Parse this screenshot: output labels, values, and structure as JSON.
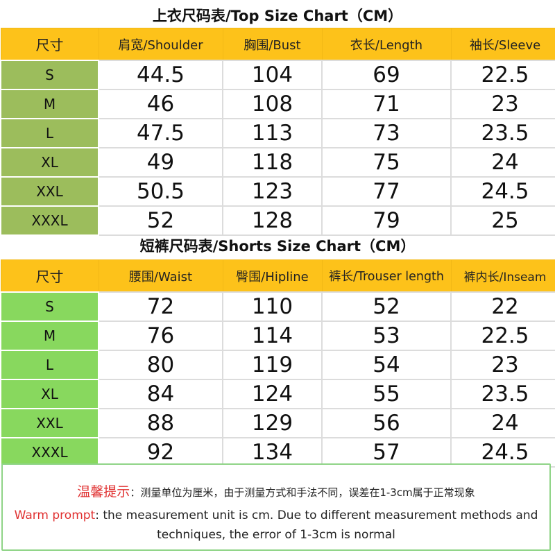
{
  "top_chart": {
    "title": "上衣尺码表/Top Size Chart（CM）",
    "headers": [
      "尺寸",
      "肩宽/Shoulder",
      "胸围/Bust",
      "衣长/Length",
      "袖长/Sleeve"
    ],
    "rows": [
      [
        "S",
        "44.5",
        "104",
        "69",
        "22.5"
      ],
      [
        "M",
        "46",
        "108",
        "71",
        "23"
      ],
      [
        "L",
        "47.5",
        "113",
        "73",
        "23.5"
      ],
      [
        "XL",
        "49",
        "118",
        "75",
        "24"
      ],
      [
        "XXL",
        "50.5",
        "123",
        "77",
        "24.5"
      ],
      [
        "XXXL",
        "52",
        "128",
        "79",
        "25"
      ]
    ]
  },
  "shorts_chart": {
    "title": "短裤尺码表/Shorts Size Chart（CM）",
    "headers": [
      "尺寸",
      "腰围/Waist",
      "臀围/Hipline",
      "裤长/Trouser length",
      "裤内长/Inseam"
    ],
    "rows": [
      [
        "S",
        "72",
        "110",
        "52",
        "22"
      ],
      [
        "M",
        "76",
        "114",
        "53",
        "22.5"
      ],
      [
        "L",
        "80",
        "119",
        "54",
        "23"
      ],
      [
        "XL",
        "84",
        "124",
        "55",
        "23.5"
      ],
      [
        "XXL",
        "88",
        "129",
        "56",
        "24"
      ],
      [
        "XXXL",
        "92",
        "134",
        "57",
        "24.5"
      ]
    ]
  },
  "note": {
    "label_cn": "温馨提示",
    "text_cn": "：测量单位为厘米，由于测量方式和手法不同，误差在1-3cm属于正常现象",
    "label_en": "Warm prompt",
    "text_en": ": the measurement unit is cm. Due to different measurement methods and techniques, the error of 1-3cm is normal"
  },
  "colors": {
    "header_yellow": "#fdc21a",
    "top_size_green": "#9cbd5c",
    "shorts_size_green": "#88d85e",
    "note_red": "#e03030"
  }
}
